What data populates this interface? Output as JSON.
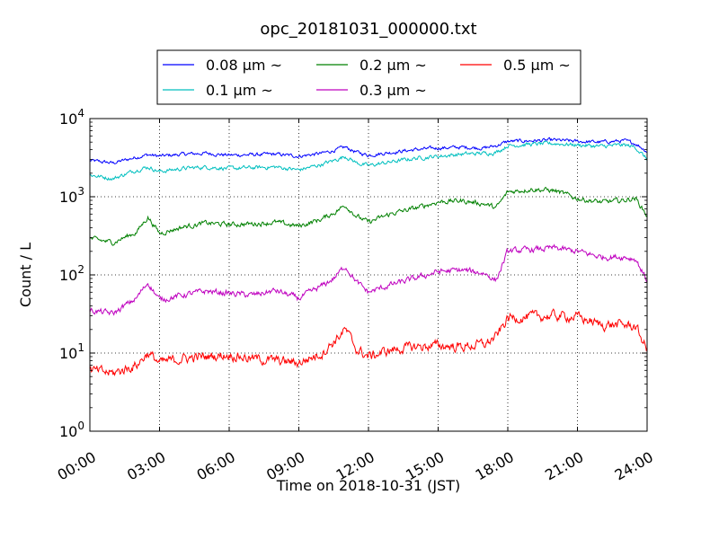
{
  "chart_data": {
    "type": "line",
    "title": "opc_20181031_000000.txt",
    "xlabel": "Time on 2018-10-31 (JST)",
    "ylabel": "Count / L",
    "yscale": "log",
    "xlim_hours": [
      0,
      24
    ],
    "ylim": [
      1,
      10000
    ],
    "grid": true,
    "legend_position": "top-center",
    "x_ticks": [
      {
        "hours": 0,
        "label": "00:00"
      },
      {
        "hours": 3,
        "label": "03:00"
      },
      {
        "hours": 6,
        "label": "06:00"
      },
      {
        "hours": 9,
        "label": "09:00"
      },
      {
        "hours": 12,
        "label": "12:00"
      },
      {
        "hours": 15,
        "label": "15:00"
      },
      {
        "hours": 18,
        "label": "18:00"
      },
      {
        "hours": 21,
        "label": "21:00"
      },
      {
        "hours": 24,
        "label": "24:00"
      }
    ],
    "y_ticks": [
      {
        "value": 1,
        "base": "10",
        "exp": "0"
      },
      {
        "value": 10,
        "base": "10",
        "exp": "1"
      },
      {
        "value": 100,
        "base": "10",
        "exp": "2"
      },
      {
        "value": 1000,
        "base": "10",
        "exp": "3"
      },
      {
        "value": 10000,
        "base": "10",
        "exp": "4"
      }
    ],
    "x_hours": [
      0,
      1,
      2,
      2.5,
      3,
      4,
      5,
      6,
      7,
      8,
      9,
      10,
      10.5,
      11,
      11.5,
      12,
      13,
      14,
      15,
      16,
      17,
      17.5,
      18,
      19,
      20,
      21,
      22,
      23,
      23.5,
      24
    ],
    "series": [
      {
        "name": "0.08 μm ~",
        "label_main": "0.08 ",
        "label_unit": "μm ~",
        "color": "#0000ff",
        "noise": 0.018,
        "values": [
          2900,
          2700,
          3200,
          3450,
          3300,
          3500,
          3600,
          3400,
          3450,
          3500,
          3300,
          3600,
          3900,
          4300,
          3700,
          3400,
          3700,
          4000,
          4200,
          4300,
          4200,
          4500,
          5100,
          5200,
          5300,
          5100,
          5000,
          5200,
          4800,
          3800
        ]
      },
      {
        "name": "0.1 μm ~",
        "label_main": "0.1 ",
        "label_unit": "μm ~",
        "color": "#00bfbf",
        "noise": 0.02,
        "values": [
          1900,
          1700,
          2200,
          2400,
          2100,
          2300,
          2400,
          2300,
          2350,
          2400,
          2200,
          2600,
          2900,
          3300,
          2700,
          2500,
          2800,
          3100,
          3300,
          3500,
          3600,
          3700,
          4500,
          4700,
          4800,
          4600,
          4400,
          4600,
          4300,
          3000
        ]
      },
      {
        "name": "0.2 μm ~",
        "label_main": "0.2 ",
        "label_unit": "μm ~",
        "color": "#008000",
        "noise": 0.025,
        "values": [
          290,
          260,
          350,
          550,
          340,
          410,
          460,
          440,
          450,
          470,
          420,
          520,
          620,
          780,
          560,
          470,
          610,
          710,
          860,
          890,
          810,
          720,
          1150,
          1250,
          1200,
          950,
          850,
          900,
          960,
          570
        ]
      },
      {
        "name": "0.3 μm ~",
        "label_main": "0.3 ",
        "label_unit": "μm ~",
        "color": "#bf00bf",
        "noise": 0.03,
        "values": [
          35,
          32,
          50,
          80,
          48,
          55,
          62,
          58,
          55,
          63,
          50,
          72,
          90,
          130,
          80,
          60,
          75,
          90,
          110,
          115,
          105,
          85,
          200,
          210,
          220,
          200,
          170,
          170,
          160,
          85
        ]
      },
      {
        "name": "0.5 μm ~",
        "label_main": "0.5 ",
        "label_unit": "μm ~",
        "color": "#ff0000",
        "noise": 0.05,
        "values": [
          6,
          5.5,
          7,
          10,
          7.5,
          8.5,
          9,
          9.5,
          8.5,
          8,
          7.5,
          10,
          14,
          20,
          11,
          9,
          11,
          12,
          12.5,
          12,
          13,
          16,
          28,
          29,
          30,
          29,
          23,
          23,
          22,
          11
        ]
      }
    ]
  }
}
